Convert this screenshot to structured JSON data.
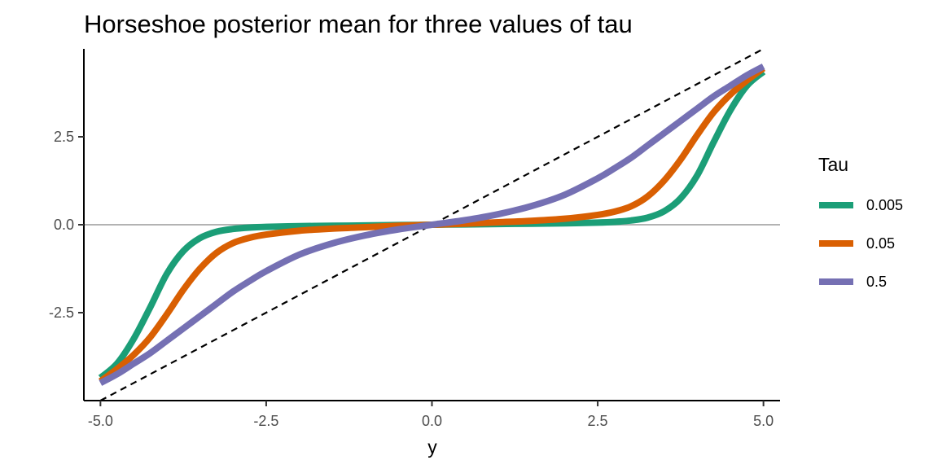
{
  "chart_data": {
    "type": "line",
    "title": "Horseshoe posterior mean for three values of tau",
    "xlabel": "y",
    "ylabel": "",
    "xlim": [
      -5.25,
      5.25
    ],
    "ylim": [
      -5.0,
      5.0
    ],
    "x_ticks": [
      -5.0,
      -2.5,
      0.0,
      2.5,
      5.0
    ],
    "x_tick_labels": [
      "-5.0",
      "-2.5",
      "0.0",
      "2.5",
      "5.0"
    ],
    "y_ticks": [
      -2.5,
      0.0,
      2.5
    ],
    "y_tick_labels": [
      "-2.5",
      "0.0",
      "2.5"
    ],
    "grid": false,
    "legend": {
      "title": "Tau",
      "position": "right"
    },
    "reference_lines": [
      {
        "kind": "identity",
        "style": "dashed",
        "color": "#000000",
        "points": [
          [
            -5.0,
            -5.0
          ],
          [
            5.0,
            5.0
          ]
        ]
      },
      {
        "kind": "horizontal",
        "y": 0.0,
        "color": "#b3b3b3"
      }
    ],
    "series": [
      {
        "name": "0.005",
        "color": "#1b9e77",
        "x": [
          -5.0,
          -4.75,
          -4.5,
          -4.25,
          -4.0,
          -3.75,
          -3.5,
          -3.25,
          -3.0,
          -2.75,
          -2.5,
          -2.0,
          -1.5,
          -1.0,
          -0.5,
          0.0,
          0.5,
          1.0,
          1.5,
          2.0,
          2.5,
          2.75,
          3.0,
          3.25,
          3.5,
          3.75,
          4.0,
          4.25,
          4.5,
          4.75,
          5.0
        ],
        "y": [
          -4.35,
          -3.95,
          -3.25,
          -2.35,
          -1.4,
          -0.75,
          -0.38,
          -0.2,
          -0.12,
          -0.08,
          -0.06,
          -0.04,
          -0.03,
          -0.02,
          -0.01,
          0.0,
          0.01,
          0.02,
          0.03,
          0.04,
          0.06,
          0.08,
          0.12,
          0.2,
          0.38,
          0.75,
          1.4,
          2.35,
          3.25,
          3.95,
          4.35
        ]
      },
      {
        "name": "0.05",
        "color": "#d95f02",
        "x": [
          -5.0,
          -4.75,
          -4.5,
          -4.25,
          -4.0,
          -3.75,
          -3.5,
          -3.25,
          -3.0,
          -2.75,
          -2.5,
          -2.0,
          -1.5,
          -1.0,
          -0.5,
          0.0,
          0.5,
          1.0,
          1.5,
          2.0,
          2.5,
          2.75,
          3.0,
          3.25,
          3.5,
          3.75,
          4.0,
          4.25,
          4.5,
          4.75,
          5.0
        ],
        "y": [
          -4.45,
          -4.1,
          -3.7,
          -3.2,
          -2.55,
          -1.85,
          -1.25,
          -0.8,
          -0.52,
          -0.37,
          -0.28,
          -0.17,
          -0.11,
          -0.07,
          -0.03,
          0.0,
          0.03,
          0.07,
          0.11,
          0.17,
          0.28,
          0.37,
          0.52,
          0.8,
          1.25,
          1.85,
          2.55,
          3.2,
          3.7,
          4.1,
          4.45
        ]
      },
      {
        "name": "0.5",
        "color": "#7570b3",
        "x": [
          -5.0,
          -4.75,
          -4.5,
          -4.25,
          -4.0,
          -3.75,
          -3.5,
          -3.25,
          -3.0,
          -2.75,
          -2.5,
          -2.0,
          -1.5,
          -1.0,
          -0.5,
          0.0,
          0.5,
          1.0,
          1.5,
          2.0,
          2.5,
          2.75,
          3.0,
          3.25,
          3.5,
          3.75,
          4.0,
          4.25,
          4.5,
          4.75,
          5.0
        ],
        "y": [
          -4.5,
          -4.25,
          -3.95,
          -3.65,
          -3.3,
          -2.95,
          -2.6,
          -2.25,
          -1.9,
          -1.6,
          -1.32,
          -0.85,
          -0.53,
          -0.3,
          -0.13,
          0.0,
          0.13,
          0.3,
          0.53,
          0.85,
          1.32,
          1.6,
          1.9,
          2.25,
          2.6,
          2.95,
          3.3,
          3.65,
          3.95,
          4.25,
          4.5
        ]
      }
    ]
  }
}
